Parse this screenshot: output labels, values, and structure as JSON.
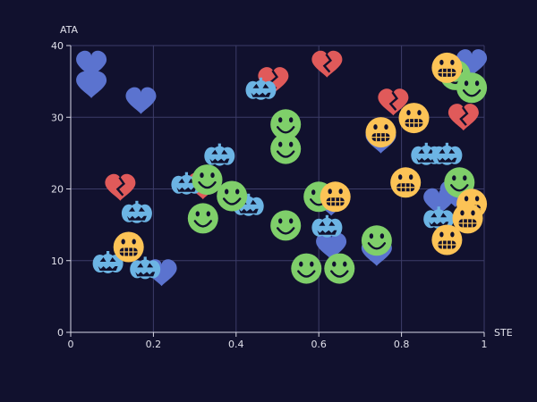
{
  "chart_data": {
    "type": "scatter",
    "title": "",
    "xlabel": "STE",
    "ylabel": "ATA",
    "xlim": [
      0,
      1
    ],
    "ylim": [
      0,
      40
    ],
    "x_ticks": [
      "0",
      "0.2",
      "0.4",
      "0.6",
      "0.8",
      "1"
    ],
    "y_ticks": [
      "0",
      "10",
      "20",
      "30",
      "40"
    ],
    "grid": true,
    "legend": "none",
    "colors": {
      "background": "#11112e",
      "blue_heart": "#5b73cf",
      "red_broken_heart": "#e05a5a",
      "cyan_pumpkin": "#6cb4e4",
      "green_smiley": "#7fcf6a",
      "yellow_grin": "#fcc356"
    },
    "series": [
      {
        "marker": "blue-heart",
        "points": [
          [
            0.05,
            37.3
          ],
          [
            0.05,
            34.4
          ],
          [
            0.17,
            32.2
          ],
          [
            0.22,
            8.2
          ],
          [
            0.63,
            18.0
          ],
          [
            0.63,
            11.9
          ],
          [
            0.75,
            26.7
          ],
          [
            0.74,
            11.0
          ],
          [
            0.89,
            18.1
          ],
          [
            0.93,
            19.2
          ],
          [
            0.97,
            37.5
          ]
        ]
      },
      {
        "marker": "red-broken-heart",
        "points": [
          [
            0.12,
            20.1
          ],
          [
            0.32,
            20.3
          ],
          [
            0.49,
            35.0
          ],
          [
            0.62,
            37.3
          ],
          [
            0.78,
            32.0
          ],
          [
            0.95,
            29.9
          ]
        ]
      },
      {
        "marker": "cyan-pumpkin",
        "points": [
          [
            0.09,
            9.6
          ],
          [
            0.16,
            16.6
          ],
          [
            0.18,
            8.8
          ],
          [
            0.28,
            20.6
          ],
          [
            0.36,
            24.6
          ],
          [
            0.43,
            17.6
          ],
          [
            0.46,
            33.8
          ],
          [
            0.62,
            14.6
          ],
          [
            0.86,
            24.7
          ],
          [
            0.91,
            24.7
          ],
          [
            0.89,
            15.8
          ]
        ]
      },
      {
        "marker": "green-smiley",
        "points": [
          [
            0.33,
            21.3
          ],
          [
            0.32,
            15.9
          ],
          [
            0.39,
            19.0
          ],
          [
            0.52,
            29.0
          ],
          [
            0.52,
            25.6
          ],
          [
            0.52,
            14.9
          ],
          [
            0.57,
            8.9
          ],
          [
            0.6,
            18.9
          ],
          [
            0.65,
            8.9
          ],
          [
            0.74,
            12.8
          ],
          [
            0.93,
            35.9
          ],
          [
            0.97,
            34.1
          ],
          [
            0.94,
            20.9
          ]
        ]
      },
      {
        "marker": "yellow-grin",
        "points": [
          [
            0.14,
            11.9
          ],
          [
            0.64,
            18.9
          ],
          [
            0.75,
            27.9
          ],
          [
            0.83,
            29.9
          ],
          [
            0.81,
            20.9
          ],
          [
            0.91,
            36.9
          ],
          [
            0.91,
            12.9
          ],
          [
            0.97,
            17.9
          ],
          [
            0.96,
            15.9
          ]
        ]
      }
    ]
  }
}
